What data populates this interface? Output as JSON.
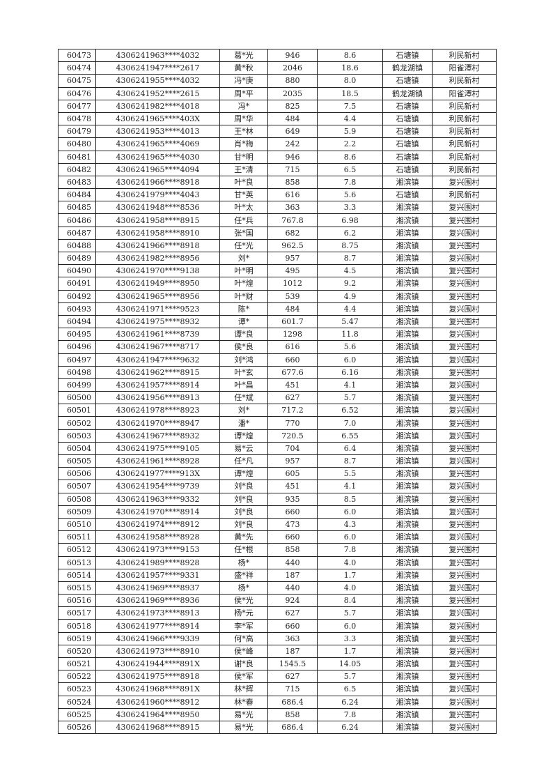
{
  "table": {
    "rows": [
      [
        "60473",
        "4306241963****4032",
        "葛*光",
        "946",
        "8.6",
        "石塘镇",
        "利民新村"
      ],
      [
        "60474",
        "4306241947****2617",
        "黄*秋",
        "2046",
        "18.6",
        "鹤龙湖镇",
        "阳雀潭村"
      ],
      [
        "60475",
        "4306241955****4032",
        "冯*庚",
        "880",
        "8.0",
        "石塘镇",
        "利民新村"
      ],
      [
        "60476",
        "4306241952****2615",
        "周*平",
        "2035",
        "18.5",
        "鹤龙湖镇",
        "阳雀潭村"
      ],
      [
        "60477",
        "4306241982****4018",
        "冯*",
        "825",
        "7.5",
        "石塘镇",
        "利民新村"
      ],
      [
        "60478",
        "4306241965****403X",
        "周*华",
        "484",
        "4.4",
        "石塘镇",
        "利民新村"
      ],
      [
        "60479",
        "4306241953****4013",
        "王*林",
        "649",
        "5.9",
        "石塘镇",
        "利民新村"
      ],
      [
        "60480",
        "4306241965****4069",
        "肖*梅",
        "242",
        "2.2",
        "石塘镇",
        "利民新村"
      ],
      [
        "60481",
        "4306241965****4030",
        "甘*明",
        "946",
        "8.6",
        "石塘镇",
        "利民新村"
      ],
      [
        "60482",
        "4306241965****4094",
        "王*清",
        "715",
        "6.5",
        "石塘镇",
        "利民新村"
      ],
      [
        "60483",
        "4306241966****8918",
        "叶*良",
        "858",
        "7.8",
        "湘滨镇",
        "复兴围村"
      ],
      [
        "60484",
        "4306241979****4043",
        "甘*英",
        "616",
        "5.6",
        "石塘镇",
        "利民新村"
      ],
      [
        "60485",
        "4306241948****8536",
        "叶*太",
        "363",
        "3.3",
        "湘滨镇",
        "复兴围村"
      ],
      [
        "60486",
        "4306241958****8915",
        "任*兵",
        "767.8",
        "6.98",
        "湘滨镇",
        "复兴围村"
      ],
      [
        "60487",
        "4306241958****8910",
        "张*国",
        "682",
        "6.2",
        "湘滨镇",
        "复兴围村"
      ],
      [
        "60488",
        "4306241966****8918",
        "任*光",
        "962.5",
        "8.75",
        "湘滨镇",
        "复兴围村"
      ],
      [
        "60489",
        "4306241982****8956",
        "刘*",
        "957",
        "8.7",
        "湘滨镇",
        "复兴围村"
      ],
      [
        "60490",
        "4306241970****9138",
        "叶*明",
        "495",
        "4.5",
        "湘滨镇",
        "复兴围村"
      ],
      [
        "60491",
        "4306241949****8950",
        "叶*煌",
        "1012",
        "9.2",
        "湘滨镇",
        "复兴围村"
      ],
      [
        "60492",
        "4306241965****8956",
        "叶*财",
        "539",
        "4.9",
        "湘滨镇",
        "复兴围村"
      ],
      [
        "60493",
        "4306241971****9523",
        "陈*",
        "484",
        "4.4",
        "湘滨镇",
        "复兴围村"
      ],
      [
        "60494",
        "4306241975****8932",
        "谭*",
        "601.7",
        "5.47",
        "湘滨镇",
        "复兴围村"
      ],
      [
        "60495",
        "4306241961****8739",
        "谭*良",
        "1298",
        "11.8",
        "湘滨镇",
        "复兴围村"
      ],
      [
        "60496",
        "4306241967****8717",
        "侯*良",
        "616",
        "5.6",
        "湘滨镇",
        "复兴围村"
      ],
      [
        "60497",
        "4306241947****9632",
        "刘*鸿",
        "660",
        "6.0",
        "湘滨镇",
        "复兴围村"
      ],
      [
        "60498",
        "4306241962****8915",
        "叶*玄",
        "677.6",
        "6.16",
        "湘滨镇",
        "复兴围村"
      ],
      [
        "60499",
        "4306241957****8914",
        "叶*昌",
        "451",
        "4.1",
        "湘滨镇",
        "复兴围村"
      ],
      [
        "60500",
        "4306241956****8913",
        "任*斌",
        "627",
        "5.7",
        "湘滨镇",
        "复兴围村"
      ],
      [
        "60501",
        "4306241978****8923",
        "刘*",
        "717.2",
        "6.52",
        "湘滨镇",
        "复兴围村"
      ],
      [
        "60502",
        "4306241970****8947",
        "潘*",
        "770",
        "7.0",
        "湘滨镇",
        "复兴围村"
      ],
      [
        "60503",
        "4306241967****8932",
        "谭*煌",
        "720.5",
        "6.55",
        "湘滨镇",
        "复兴围村"
      ],
      [
        "60504",
        "4306241975****9105",
        "易*云",
        "704",
        "6.4",
        "湘滨镇",
        "复兴围村"
      ],
      [
        "60505",
        "4306241961****8928",
        "任*凡",
        "957",
        "8.7",
        "湘滨镇",
        "复兴围村"
      ],
      [
        "60506",
        "4306241977****913X",
        "谭*煌",
        "605",
        "5.5",
        "湘滨镇",
        "复兴围村"
      ],
      [
        "60507",
        "4306241954****9739",
        "刘*良",
        "451",
        "4.1",
        "湘滨镇",
        "复兴围村"
      ],
      [
        "60508",
        "4306241963****9332",
        "刘*良",
        "935",
        "8.5",
        "湘滨镇",
        "复兴围村"
      ],
      [
        "60509",
        "4306241970****8914",
        "刘*良",
        "660",
        "6.0",
        "湘滨镇",
        "复兴围村"
      ],
      [
        "60510",
        "4306241974****8912",
        "刘*良",
        "473",
        "4.3",
        "湘滨镇",
        "复兴围村"
      ],
      [
        "60511",
        "4306241958****8928",
        "黄*先",
        "660",
        "6.0",
        "湘滨镇",
        "复兴围村"
      ],
      [
        "60512",
        "4306241973****9153",
        "任*根",
        "858",
        "7.8",
        "湘滨镇",
        "复兴围村"
      ],
      [
        "60513",
        "4306241989****8928",
        "杨*",
        "440",
        "4.0",
        "湘滨镇",
        "复兴围村"
      ],
      [
        "60514",
        "4306241957****9331",
        "盛*祥",
        "187",
        "1.7",
        "湘滨镇",
        "复兴围村"
      ],
      [
        "60515",
        "4306241969****8937",
        "杨*",
        "440",
        "4.0",
        "湘滨镇",
        "复兴围村"
      ],
      [
        "60516",
        "4306241969****8936",
        "侯*光",
        "924",
        "8.4",
        "湘滨镇",
        "复兴围村"
      ],
      [
        "60517",
        "4306241973****8913",
        "杨*元",
        "627",
        "5.7",
        "湘滨镇",
        "复兴围村"
      ],
      [
        "60518",
        "4306241977****8914",
        "李*军",
        "660",
        "6.0",
        "湘滨镇",
        "复兴围村"
      ],
      [
        "60519",
        "4306241966****9339",
        "何*高",
        "363",
        "3.3",
        "湘滨镇",
        "复兴围村"
      ],
      [
        "60520",
        "4306241973****8910",
        "侯*峰",
        "187",
        "1.7",
        "湘滨镇",
        "复兴围村"
      ],
      [
        "60521",
        "4306241944****891X",
        "谢*良",
        "1545.5",
        "14.05",
        "湘滨镇",
        "复兴围村"
      ],
      [
        "60522",
        "4306241975****8918",
        "侯*军",
        "627",
        "5.7",
        "湘滨镇",
        "复兴围村"
      ],
      [
        "60523",
        "4306241968****891X",
        "林*辉",
        "715",
        "6.5",
        "湘滨镇",
        "复兴围村"
      ],
      [
        "60524",
        "4306241960****8912",
        "林*春",
        "686.4",
        "6.24",
        "湘滨镇",
        "复兴围村"
      ],
      [
        "60525",
        "4306241964****8950",
        "易*光",
        "858",
        "7.8",
        "湘滨镇",
        "复兴围村"
      ],
      [
        "60526",
        "4306241968****8915",
        "易*光",
        "686.4",
        "6.24",
        "湘滨镇",
        "复兴围村"
      ]
    ]
  }
}
